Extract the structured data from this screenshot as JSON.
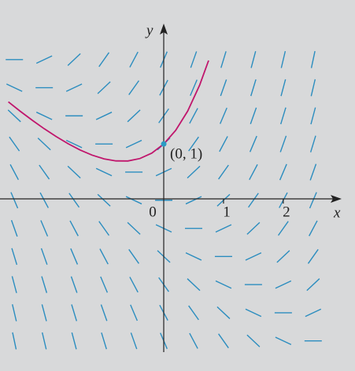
{
  "chart_data": {
    "type": "direction_field",
    "x_label": "x",
    "y_label": "y",
    "xlim": [
      -2.74,
      2.95
    ],
    "ylim": [
      -2.7,
      3.14
    ],
    "xticks": [
      0,
      1,
      2
    ],
    "field_x": [
      -2.5,
      -2,
      -1.5,
      -1,
      -0.5,
      0,
      0.5,
      1,
      1.5,
      2,
      2.5
    ],
    "field_y": [
      2.5,
      2,
      1.5,
      1,
      0.5,
      0,
      -0.5,
      -1,
      -1.5,
      -2,
      -2.5
    ],
    "slopes": [
      [
        0,
        0.5,
        1,
        1.5,
        2,
        2.5,
        3,
        3.5,
        4,
        4.5,
        5
      ],
      [
        -0.5,
        0,
        0.5,
        1,
        1.5,
        2,
        2.5,
        3,
        3.5,
        4,
        4.5
      ],
      [
        -1,
        -0.5,
        0,
        0.5,
        1,
        1.5,
        2,
        2.5,
        3,
        3.5,
        4
      ],
      [
        -1.5,
        -1,
        -0.5,
        0,
        0.5,
        1,
        1.5,
        2,
        2.5,
        3,
        3.5
      ],
      [
        -2,
        -1.5,
        -1,
        -0.5,
        0,
        0.5,
        1,
        1.5,
        2,
        2.5,
        3
      ],
      [
        -2.5,
        -2,
        -1.5,
        -1,
        -0.5,
        0,
        0.5,
        1,
        1.5,
        2,
        2.5
      ],
      [
        -3,
        -2.5,
        -2,
        -1.5,
        -1,
        -0.5,
        0,
        0.5,
        1,
        1.5,
        2
      ],
      [
        -3.5,
        -3,
        -2.5,
        -2,
        -1.5,
        -1,
        -0.5,
        0,
        0.5,
        1,
        1.5
      ],
      [
        -4,
        -3.5,
        -3,
        -2.5,
        -2,
        -1.5,
        -1,
        -0.5,
        0,
        0.5,
        1
      ],
      [
        -4.5,
        -4,
        -3.5,
        -3,
        -2.5,
        -2,
        -1.5,
        -1,
        -0.5,
        0,
        0.5
      ],
      [
        -5,
        -4.5,
        -4,
        -3.5,
        -3,
        -2.5,
        -2,
        -1.5,
        -1,
        -0.5,
        0
      ]
    ],
    "field_color": "#2b8dbf",
    "curve": {
      "color": "#c0166c",
      "x": [
        -2.6,
        -2.4,
        -2.2,
        -2.0,
        -1.8,
        -1.6,
        -1.4,
        -1.2,
        -1.0,
        -0.8,
        -0.6,
        -0.4,
        -0.2,
        0,
        0.2,
        0.4,
        0.6,
        0.75
      ],
      "y": [
        1.749,
        1.581,
        1.422,
        1.271,
        1.131,
        1.004,
        0.893,
        0.802,
        0.736,
        0.699,
        0.698,
        0.741,
        0.837,
        1,
        1.243,
        1.584,
        2.044,
        2.484
      ]
    },
    "point": {
      "x": 0,
      "y": 1,
      "label": "(0, 1)",
      "color": "#2a9bc4"
    }
  }
}
